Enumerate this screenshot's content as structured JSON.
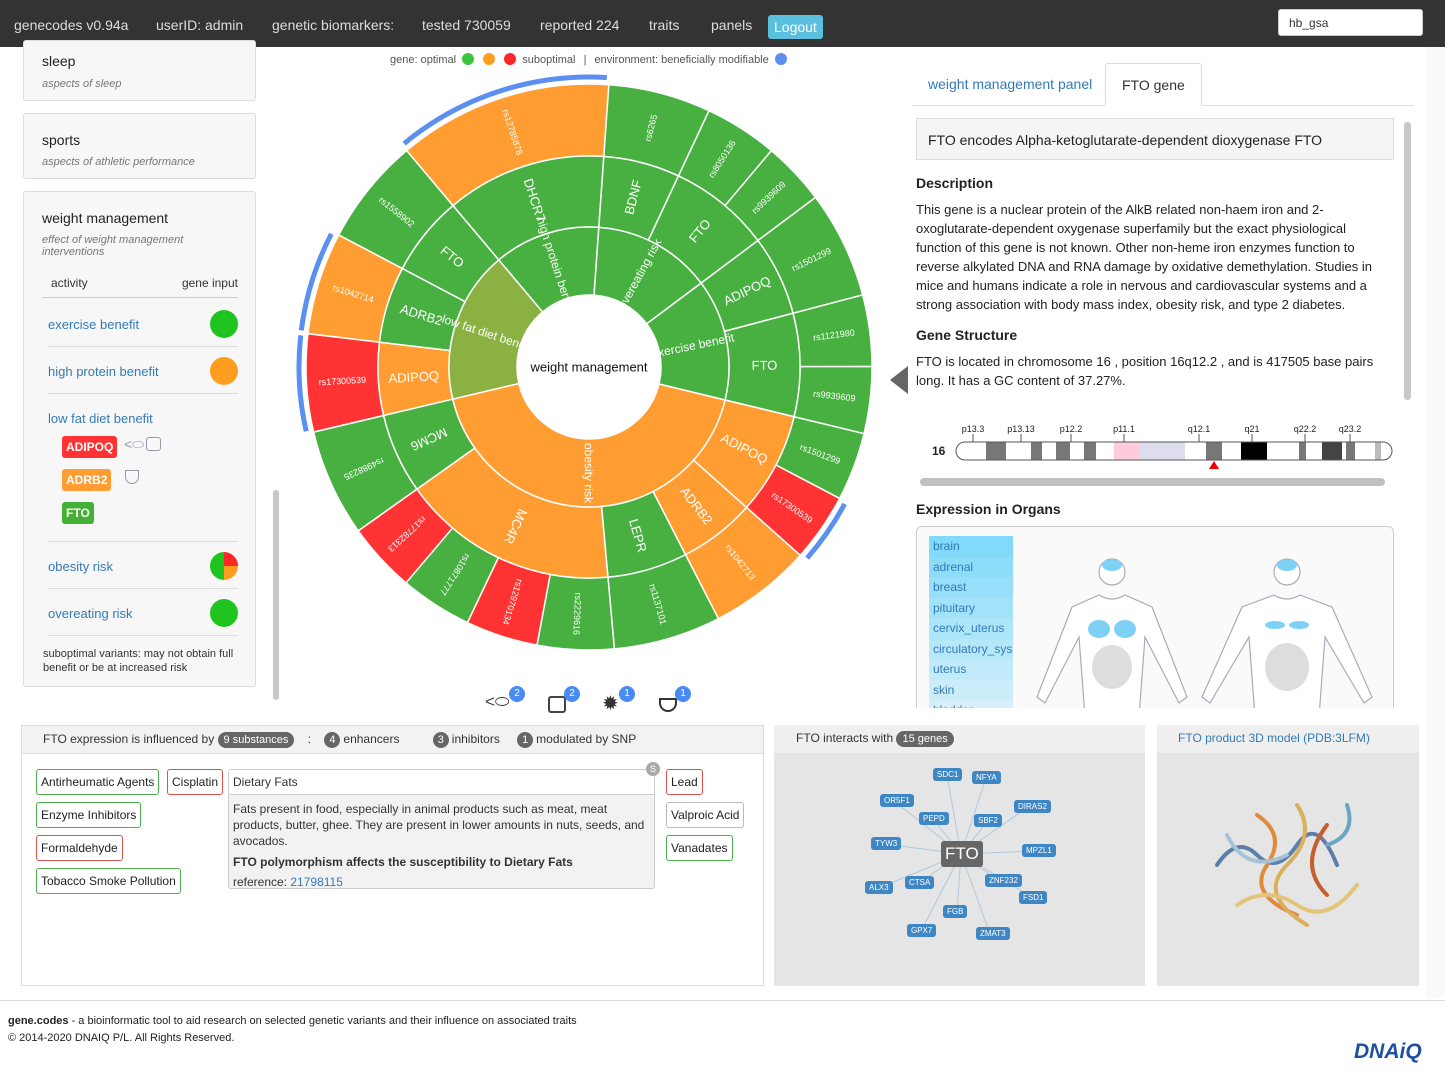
{
  "topbar": {
    "brand": "genecodes v0.94a",
    "user": "userID: admin",
    "biomarkers": "genetic biomarkers:",
    "tested": "tested 730059",
    "reported": "reported 224",
    "traits": "traits",
    "panels": "panels",
    "logout": "Logout",
    "search_value": "hb_gsa"
  },
  "sidebar": {
    "sleep": {
      "title": "sleep",
      "subtitle": "aspects of sleep"
    },
    "sports": {
      "title": "sports",
      "subtitle": "aspects of athletic performance"
    },
    "weight": {
      "title": "weight management",
      "subtitle": "effect of weight management interventions",
      "col_activity": "activity",
      "col_gene": "gene input",
      "rows": [
        {
          "label": "exercise benefit",
          "status": "#3cc43c"
        },
        {
          "label": "high protein benefit",
          "status": "#ff9d1e"
        },
        {
          "label": "low fat diet benefit"
        },
        {
          "label": "obesity risk",
          "status": "mixed"
        },
        {
          "label": "overeating risk",
          "status": "#3cc43c"
        }
      ],
      "genes": [
        {
          "name": "ADIPOQ",
          "color": "#ff3333",
          "icons": [
            "fish-icon",
            "scale-icon"
          ]
        },
        {
          "name": "ADRB2",
          "color": "#ff9d33",
          "icons": [
            "salad-icon"
          ]
        },
        {
          "name": "FTO",
          "color": "#44b035",
          "icons": []
        }
      ],
      "note": "suboptimal variants: may not obtain full benefit or be at increased risk"
    }
  },
  "legend": {
    "gene": "gene: optimal",
    "suboptimal": "suboptimal",
    "sep": "|",
    "env": "environment: beneficially modifiable",
    "colors": {
      "optimal": "#3cc43c",
      "mid": "#ff9d1e",
      "suboptimal": "#ff2626",
      "env": "#5b8ff0"
    }
  },
  "sunburst": {
    "center": "weight management",
    "colors": {
      "g": "#48b041",
      "o": "#ff9d33",
      "r": "#ff3333",
      "olive": "#8ab141",
      "arc": "#5b8ff0"
    },
    "categories": [
      {
        "name": "low fat diet benefit",
        "color": "olive",
        "genes": [
          {
            "name": "ADIPOQ",
            "color": "o",
            "snps": [
              {
                "id": "rs17300539",
                "color": "r",
                "weight": 20,
                "modifiable": true
              }
            ]
          },
          {
            "name": "ADRB2",
            "color": "g",
            "snps": [
              {
                "id": "rs1042714",
                "color": "o",
                "weight": 21,
                "modifiable": true
              }
            ]
          },
          {
            "name": "FTO",
            "color": "g",
            "snps": [
              {
                "id": "rs1558902",
                "color": "g",
                "weight": 22
              }
            ]
          }
        ]
      },
      {
        "name": "high protein benefit",
        "color": "g",
        "genes": [
          {
            "name": "DHCR7",
            "color": "g",
            "snps": [
              {
                "id": "rs12785878",
                "color": "o",
                "weight": 44,
                "modifiable": true
              }
            ]
          }
        ]
      },
      {
        "name": "overeating risk",
        "color": "g",
        "genes": [
          {
            "name": "BDNF",
            "color": "g",
            "snps": [
              {
                "id": "rs6265",
                "color": "g",
                "weight": 21
              }
            ]
          },
          {
            "name": "FTO",
            "color": "g",
            "snps": [
              {
                "id": "rs8050136",
                "color": "g",
                "weight": 15
              },
              {
                "id": "rs9939609",
                "color": "g",
                "weight": 13
              }
            ]
          }
        ]
      },
      {
        "name": "exercise benefit",
        "color": "g",
        "genes": [
          {
            "name": "ADIPOQ",
            "color": "g",
            "snps": [
              {
                "id": "rs1501299",
                "color": "g",
                "weight": 22
              }
            ]
          },
          {
            "name": "FTO",
            "color": "g",
            "snps": [
              {
                "id": "rs1121980",
                "color": "g",
                "weight": 14.6
              },
              {
                "id": "rs9939609",
                "color": "g",
                "weight": 13.7
              }
            ]
          }
        ]
      },
      {
        "name": "obesity risk",
        "color": "o",
        "genes": [
          {
            "name": "ADIPOQ",
            "color": "o",
            "snps": [
              {
                "id": "rs1501299",
                "color": "g",
                "weight": 14
              },
              {
                "id": "rs17300539",
                "color": "r",
                "weight": 14,
                "modifiable": true
              }
            ]
          },
          {
            "name": "ADRB2",
            "color": "o",
            "snps": [
              {
                "id": "rs1042713",
                "color": "o",
                "weight": 21
              }
            ]
          },
          {
            "name": "LEPR",
            "color": "g",
            "snps": [
              {
                "id": "rs1137101",
                "color": "g",
                "weight": 22
              }
            ]
          },
          {
            "name": "MC4R",
            "color": "o",
            "snps": [
              {
                "id": "rs2229616",
                "color": "g",
                "weight": 15.7
              },
              {
                "id": "rs12970134",
                "color": "r",
                "weight": 14.8
              },
              {
                "id": "rs10871777",
                "color": "g",
                "weight": 14.8
              },
              {
                "id": "rs17782313",
                "color": "r",
                "weight": 14.3
              }
            ]
          },
          {
            "name": "MCM6",
            "color": "g",
            "snps": [
              {
                "id": "rs4988235",
                "color": "g",
                "weight": 22
              }
            ]
          }
        ]
      }
    ]
  },
  "filters": [
    {
      "icon": "fish-icon",
      "count": "2"
    },
    {
      "icon": "scale-icon",
      "count": "2"
    },
    {
      "icon": "sun-icon",
      "count": "1"
    },
    {
      "icon": "salad-icon",
      "count": "1"
    }
  ],
  "gene_panel": {
    "tabs": [
      "weight management panel",
      "FTO gene"
    ],
    "title": "FTO encodes Alpha-ketoglutarate-dependent dioxygenase FTO",
    "desc_h": "Description",
    "desc": "This gene is a nuclear protein of the AlkB related non-haem iron and 2-oxoglutarate-dependent oxygenase superfamily but the exact physiological function of this gene is not known. Other non-heme iron enzymes function to reverse alkylated DNA and RNA damage by oxidative demethylation. Studies in mice and humans indicate a role in nervous and cardiovascular systems and a strong association with body mass index, obesity risk, and type 2 diabetes.",
    "struct_h": "Gene Structure",
    "struct": "FTO is located in chromosome 16 , position 16q12.2 , and is 417505 base pairs long. It has a GC content of 37.27%.",
    "chromosome": "16",
    "bands": [
      "p13.3",
      "p13.13",
      "p12.2",
      "p11.1",
      "q12.1",
      "q21",
      "q22.2",
      "q23.2"
    ],
    "organs_h": "Expression in Organs",
    "organs": [
      "brain",
      "adrenal",
      "breast",
      "pituitary",
      "cervix_uterus",
      "circulatory_system",
      "uterus",
      "skin",
      "bladder"
    ]
  },
  "substances": {
    "prefix": "FTO expression is influenced by",
    "badge": "9 substances",
    "colon": ":",
    "enh_n": "4",
    "enh": "enhancers",
    "inh_n": "3",
    "inh": "inhibitors",
    "snp_n": "1",
    "snp": "modulated by SNP",
    "left": [
      {
        "name": "Antirheumatic Agents",
        "type": "g"
      },
      {
        "name": "Cisplatin",
        "type": "r"
      },
      {
        "name": "Enzyme Inhibitors",
        "type": "g"
      },
      {
        "name": "Formaldehyde",
        "type": "r"
      },
      {
        "name": "Tobacco Smoke Pollution",
        "type": "g"
      }
    ],
    "right": [
      {
        "name": "Lead",
        "type": "r"
      },
      {
        "name": "Valproic Acid",
        "type": "y"
      },
      {
        "name": "Vanadates",
        "type": "g"
      }
    ],
    "card": {
      "title": "Dietary Fats",
      "tag": "S",
      "body": "Fats present in food, especially in animal products such as meat, meat products, butter, ghee. They are present in lower amounts in nuts, seeds, and avocados.",
      "bold": "FTO polymorphism affects the susceptibility to Dietary Fats",
      "ref_label": "reference:",
      "ref": "21798115"
    }
  },
  "interactions": {
    "prefix": "FTO interacts with",
    "badge": "15 genes",
    "center": "FTO",
    "genes": [
      "SDC1",
      "NFYA",
      "OR5F1",
      "DIRAS2",
      "PEPD",
      "SBF2",
      "TYW3",
      "MPZL1",
      "ALX3",
      "CTSA",
      "ZNF232",
      "FSD1",
      "FGB",
      "GPX7",
      "ZMAT3"
    ]
  },
  "model": {
    "title": "FTO product 3D model (PDB:3LFM)"
  },
  "footer": {
    "brand": "gene.codes",
    "text": " - a bioinformatic tool to aid research on selected genetic variants and their influence on associated traits",
    "copy": "© 2014-2020 DNAIQ P/L. All Rights Reserved.",
    "logo": "DNAiQ"
  }
}
